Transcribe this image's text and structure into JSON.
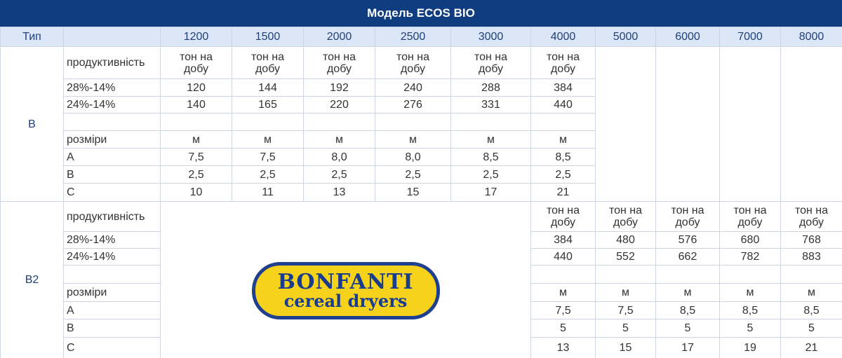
{
  "title": "Модель ECOS BIO",
  "header": {
    "type_label": "Тип",
    "models": [
      "1200",
      "1500",
      "2000",
      "2500",
      "3000",
      "4000",
      "5000",
      "6000",
      "7000",
      "8000"
    ]
  },
  "logo": [
    "BONFANTI",
    "cereal dryers"
  ],
  "sections": [
    {
      "type": "B",
      "rows": [
        {
          "label": "продуктивність",
          "cells": [
            "тон на добу",
            "тон на добу",
            "тон на добу",
            "тон на добу",
            "тон на добу",
            "тон на добу"
          ]
        },
        {
          "label": "28%-14%",
          "cells": [
            "120",
            "144",
            "192",
            "240",
            "288",
            "384"
          ]
        },
        {
          "label": "24%-14%",
          "cells": [
            "140",
            "165",
            "220",
            "276",
            "331",
            "440"
          ]
        },
        {
          "label": "розміри",
          "cells": [
            "м",
            "м",
            "м",
            "м",
            "м",
            "м"
          ]
        },
        {
          "label": "A",
          "cells": [
            "7,5",
            "7,5",
            "8,0",
            "8,0",
            "8,5",
            "8,5"
          ]
        },
        {
          "label": "B",
          "cells": [
            "2,5",
            "2,5",
            "2,5",
            "2,5",
            "2,5",
            "2,5"
          ]
        },
        {
          "label": "C",
          "cells": [
            "10",
            "11",
            "13",
            "15",
            "17",
            "21"
          ]
        }
      ]
    },
    {
      "type": "B2",
      "rows": [
        {
          "label": "продуктивність",
          "cells": [
            "тон на добу",
            "тон на добу",
            "тон на добу",
            "тон на добу",
            "тон на добу"
          ]
        },
        {
          "label": "28%-14%",
          "cells": [
            "384",
            "480",
            "576",
            "680",
            "768"
          ]
        },
        {
          "label": "24%-14%",
          "cells": [
            "440",
            "552",
            "662",
            "782",
            "883"
          ]
        },
        {
          "label": "розміри",
          "cells": [
            "м",
            "м",
            "м",
            "м",
            "м"
          ]
        },
        {
          "label": "A",
          "cells": [
            "7,5",
            "7,5",
            "8,5",
            "8,5",
            "8,5"
          ]
        },
        {
          "label": "B",
          "cells": [
            "5",
            "5",
            "5",
            "5",
            "5"
          ]
        },
        {
          "label": "C",
          "cells": [
            "13",
            "15",
            "17",
            "19",
            "21"
          ]
        }
      ]
    }
  ]
}
